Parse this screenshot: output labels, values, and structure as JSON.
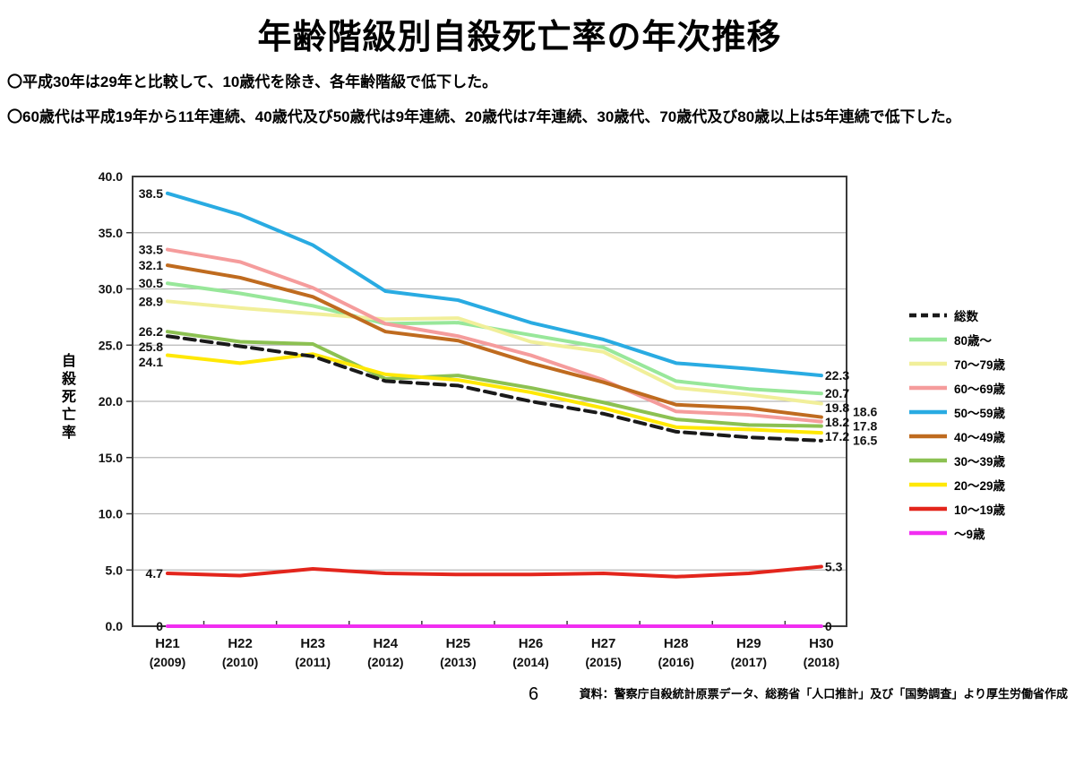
{
  "page": {
    "title": "年齢階級別自殺死亡率の年次推移",
    "bullets": [
      "〇平成30年は29年と比較して、10歳代を除き、各年齢階級で低下した。",
      "〇60歳代は平成19年から11年連続、40歳代及び50歳代は9年連続、20歳代は7年連続、30歳代、70歳代及び80歳以上は5年連続で低下した。"
    ],
    "page_number": "6",
    "source": "資料：警察庁自殺統計原票データ、総務省「人口推計」及び「国勢調査」より厚生労働省作成"
  },
  "chart_data": {
    "type": "line",
    "title": "年齢階級別自殺死亡率の年次推移",
    "ylabel": "自殺死亡率",
    "xlabel": "",
    "ylim": [
      0,
      40
    ],
    "grid": true,
    "legend_position": "right",
    "yticks": [
      "40.0",
      "35.0",
      "30.0",
      "25.0",
      "20.0",
      "15.0",
      "10.0",
      "5.0",
      "0.0"
    ],
    "x_era_labels": [
      "H21",
      "H22",
      "H23",
      "H24",
      "H25",
      "H26",
      "H27",
      "H28",
      "H29",
      "H30"
    ],
    "x_year_labels": [
      "(2009)",
      "(2010)",
      "(2011)",
      "(2012)",
      "(2013)",
      "(2014)",
      "(2015)",
      "(2016)",
      "(2017)",
      "(2018)"
    ],
    "series": [
      {
        "name": "総数",
        "color": "#1a1a1a",
        "dash": true,
        "values": [
          25.8,
          24.9,
          24.0,
          21.8,
          21.4,
          20.0,
          18.9,
          17.3,
          16.8,
          16.5
        ],
        "start_label": "25.8",
        "end_label": "16.5",
        "end_side": "outside"
      },
      {
        "name": "80歳～",
        "color": "#98e79a",
        "dash": false,
        "values": [
          30.5,
          29.6,
          28.5,
          26.9,
          27.0,
          25.9,
          24.8,
          21.8,
          21.1,
          20.7
        ],
        "start_label": "30.5",
        "end_label": "20.7",
        "end_side": "inside"
      },
      {
        "name": "70～79歳",
        "color": "#f1ef9a",
        "dash": false,
        "values": [
          28.9,
          28.3,
          27.8,
          27.3,
          27.4,
          25.3,
          24.4,
          21.2,
          20.6,
          19.8
        ],
        "start_label": "28.9",
        "end_label": "19.8",
        "end_side": "inside"
      },
      {
        "name": "60～69歳",
        "color": "#f59c9c",
        "dash": false,
        "values": [
          33.5,
          32.4,
          30.1,
          26.9,
          25.8,
          24.1,
          21.9,
          19.1,
          18.8,
          18.2
        ],
        "start_label": "33.5",
        "end_label": "18.2",
        "end_side": "inside"
      },
      {
        "name": "50～59歳",
        "color": "#29abe2",
        "dash": false,
        "values": [
          38.5,
          36.6,
          33.9,
          29.8,
          29.0,
          27.0,
          25.5,
          23.4,
          22.9,
          22.3
        ],
        "start_label": "38.5",
        "end_label": "22.3",
        "end_side": "inside"
      },
      {
        "name": "40～49歳",
        "color": "#bf6b1f",
        "dash": false,
        "values": [
          32.1,
          31.0,
          29.3,
          26.2,
          25.4,
          23.4,
          21.7,
          19.7,
          19.4,
          18.6
        ],
        "start_label": "32.1",
        "end_label": "18.6",
        "end_side": "outside"
      },
      {
        "name": "30～39歳",
        "color": "#8cc152",
        "dash": false,
        "values": [
          26.2,
          25.3,
          25.1,
          22.0,
          22.3,
          21.2,
          19.9,
          18.4,
          17.9,
          17.8
        ],
        "start_label": "26.2",
        "end_label": "17.8",
        "end_side": "outside"
      },
      {
        "name": "20～29歳",
        "color": "#ffe805",
        "dash": false,
        "values": [
          24.1,
          23.4,
          24.2,
          22.4,
          21.9,
          20.8,
          19.4,
          17.7,
          17.5,
          17.2
        ],
        "start_label": "24.1",
        "end_label": "17.2",
        "end_side": "inside"
      },
      {
        "name": "10～19歳",
        "color": "#e3251c",
        "dash": false,
        "values": [
          4.7,
          4.5,
          5.1,
          4.7,
          4.6,
          4.6,
          4.7,
          4.4,
          4.7,
          5.3
        ],
        "start_label": "4.7",
        "end_label": "5.3",
        "end_side": "inside"
      },
      {
        "name": "～9歳",
        "color": "#f12df1",
        "dash": false,
        "values": [
          0,
          0,
          0,
          0,
          0,
          0,
          0,
          0,
          0,
          0
        ],
        "start_label": "0",
        "end_label": "0",
        "end_side": "inside"
      }
    ]
  }
}
